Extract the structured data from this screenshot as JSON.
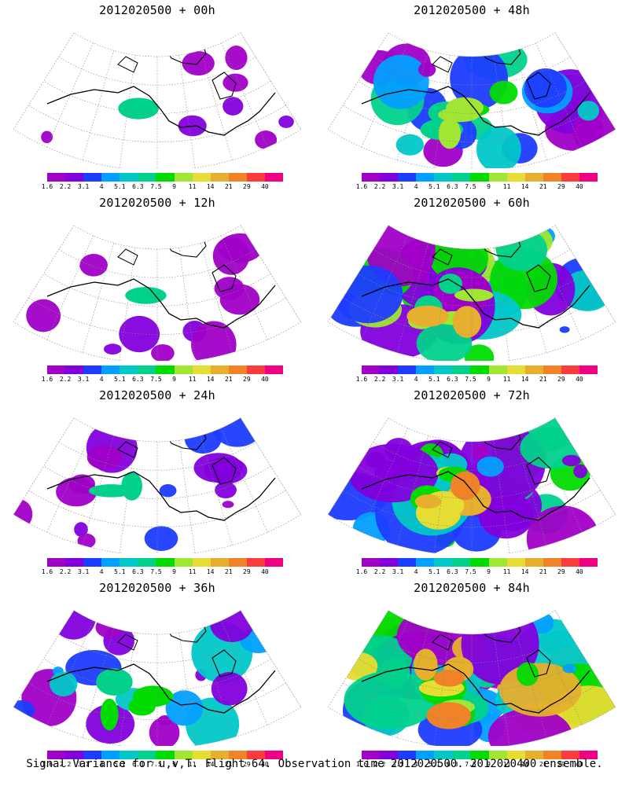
{
  "panels": [
    {
      "title": "2012020500 + 00h",
      "level": 0.05
    },
    {
      "title": "2012020500 + 48h",
      "level": 0.55
    },
    {
      "title": "2012020500 + 12h",
      "level": 0.12
    },
    {
      "title": "2012020500 + 60h",
      "level": 0.65
    },
    {
      "title": "2012020500 + 24h",
      "level": 0.22
    },
    {
      "title": "2012020500 + 72h",
      "level": 0.75
    },
    {
      "title": "2012020500 + 36h",
      "level": 0.35
    },
    {
      "title": "2012020500 + 84h",
      "level": 0.9
    }
  ],
  "colorbar": {
    "colors": [
      "#a000c8",
      "#8200dc",
      "#1e3cff",
      "#00a0ff",
      "#00c8c8",
      "#00d28c",
      "#00dc00",
      "#a0e632",
      "#e6dc32",
      "#e6af2d",
      "#f08228",
      "#fa3c3c",
      "#f00082"
    ],
    "tick_labels": [
      "1.6",
      "2.2",
      "3.1",
      "4",
      "5.1",
      "6.3",
      "7.5",
      "9",
      "11",
      "14",
      "21",
      "29",
      "40"
    ]
  },
  "footer": "Signal Variance for u,v,T. Flight 64. Observation time 2012020500. 2012020400 ensemble."
}
